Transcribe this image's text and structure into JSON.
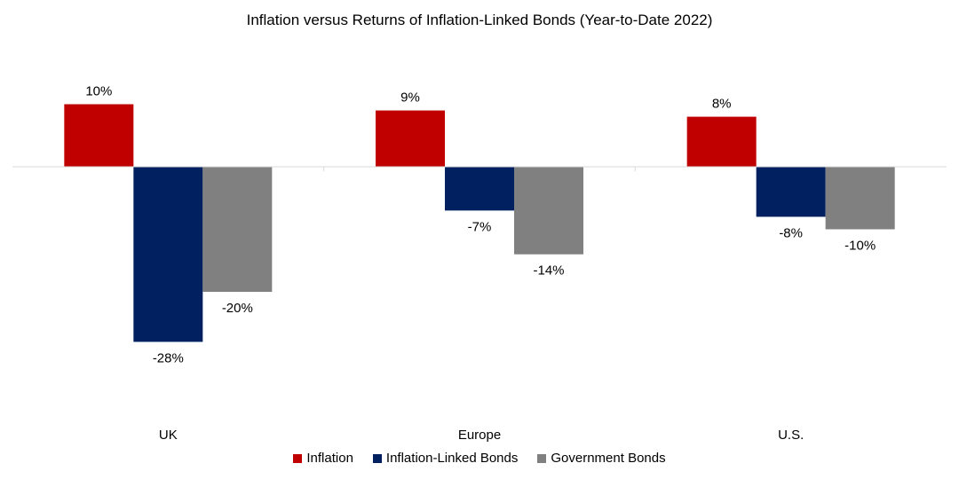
{
  "chart_data": {
    "type": "bar",
    "title": "Inflation versus Returns of Inflation-Linked Bonds (Year-to-Date 2022)",
    "categories": [
      "UK",
      "Europe",
      "U.S."
    ],
    "series": [
      {
        "name": "Inflation",
        "color": "#C00000",
        "values": [
          10,
          9,
          8
        ],
        "labels": [
          "10%",
          "9%",
          "8%"
        ]
      },
      {
        "name": "Inflation-Linked Bonds",
        "color": "#002060",
        "values": [
          -28,
          -7,
          -8
        ],
        "labels": [
          "-28%",
          "-7%",
          "-8%"
        ]
      },
      {
        "name": "Government Bonds",
        "color": "#808080",
        "values": [
          -20,
          -14,
          -10
        ],
        "labels": [
          "-20%",
          "-14%",
          "-10%"
        ]
      }
    ],
    "ylim": [
      -30,
      15
    ],
    "grid": false,
    "legend_position": "bottom"
  }
}
